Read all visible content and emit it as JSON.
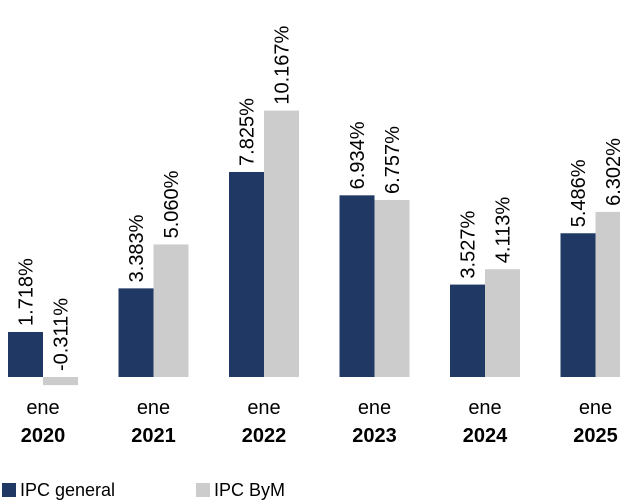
{
  "chart_data": {
    "type": "bar",
    "categories": [
      {
        "month": "ene",
        "year": "2020"
      },
      {
        "month": "ene",
        "year": "2021"
      },
      {
        "month": "ene",
        "year": "2022"
      },
      {
        "month": "ene",
        "year": "2023"
      },
      {
        "month": "ene",
        "year": "2024"
      },
      {
        "month": "ene",
        "year": "2025"
      }
    ],
    "series": [
      {
        "name": "IPC general",
        "color": "#1f3864",
        "values": [
          1.718,
          3.383,
          7.825,
          6.934,
          3.527,
          5.486
        ],
        "labels": [
          "1.718%",
          "3.383%",
          "7.825%",
          "6.934%",
          "3.527%",
          "5.486%"
        ]
      },
      {
        "name": "IPC ByM",
        "color": "#cccccc",
        "values": [
          -0.311,
          5.06,
          10.167,
          6.757,
          4.113,
          6.302
        ],
        "labels": [
          "-0.311%",
          "5.060%",
          "10.167%",
          "6.757%",
          "4.113%",
          "6.302%"
        ]
      }
    ],
    "title": "",
    "xlabel": "",
    "ylabel": "",
    "ylim": [
      -0.5,
      10.5
    ],
    "grid": false,
    "legend": "bottom-left"
  }
}
